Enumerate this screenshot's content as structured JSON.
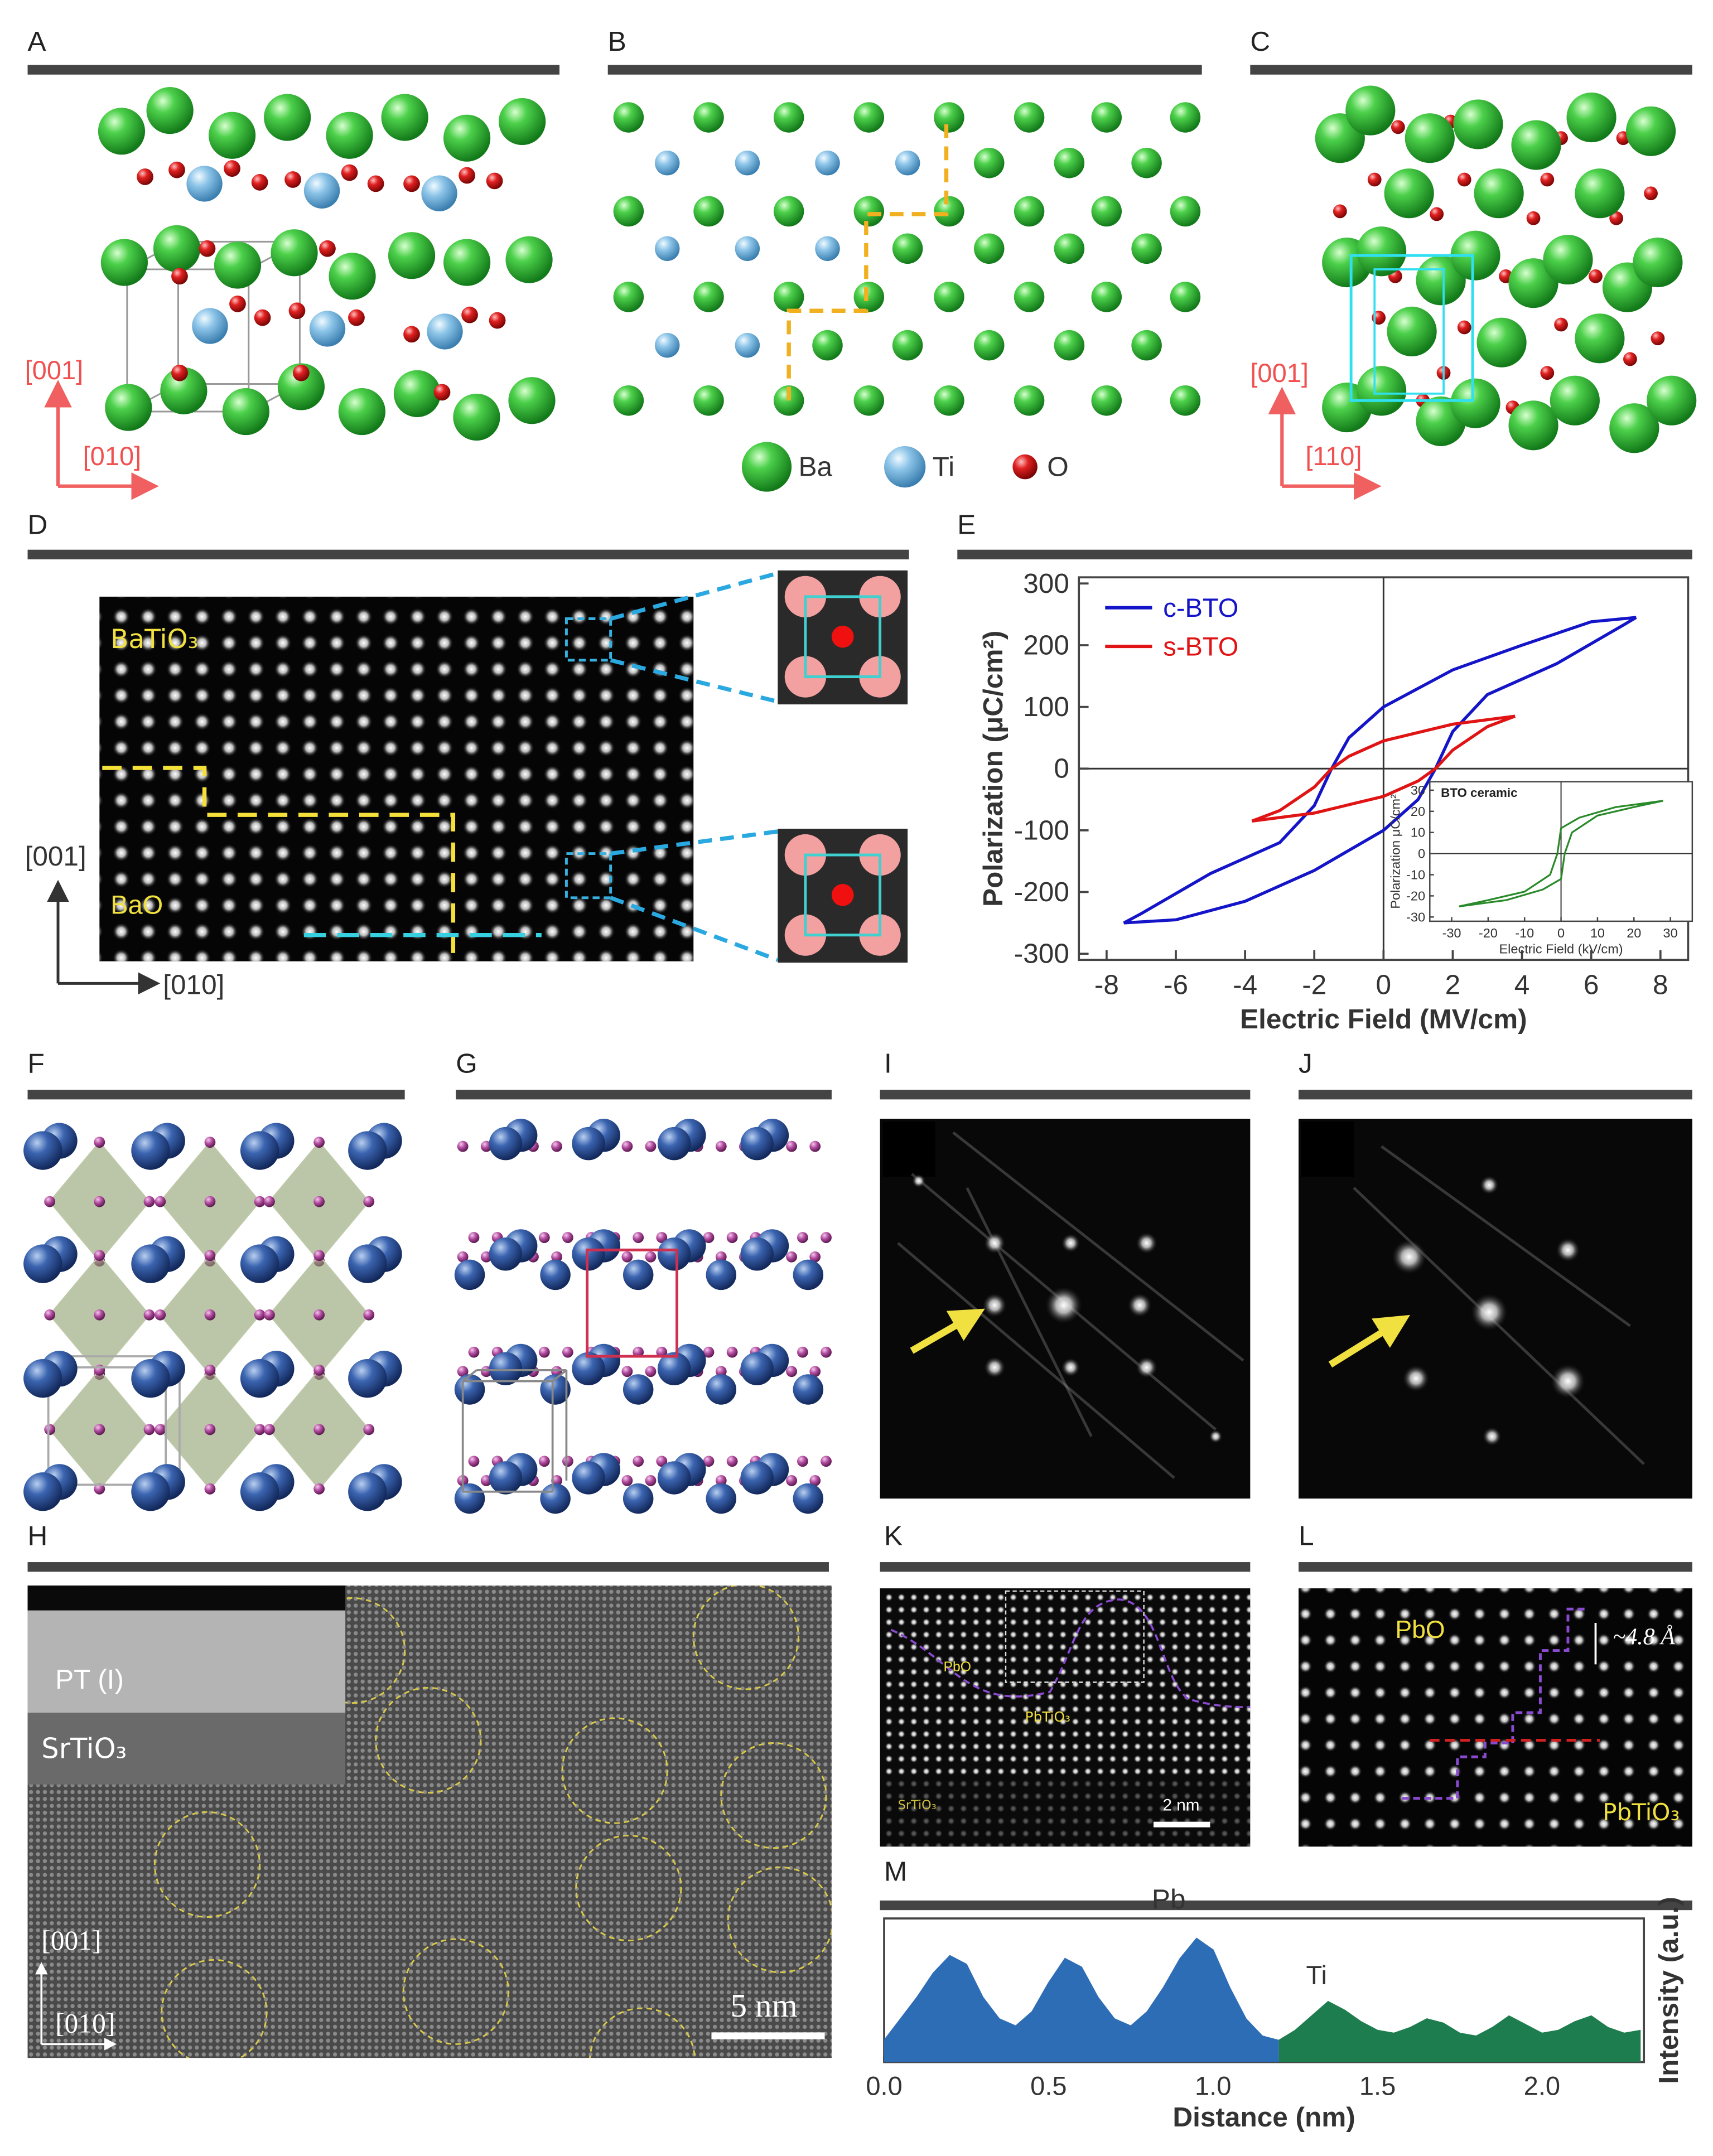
{
  "panels": {
    "A": {
      "label": "A",
      "axes": [
        "[001]",
        "[010]"
      ]
    },
    "B": {
      "label": "B",
      "legend": [
        "Ba",
        "Ti",
        "O"
      ]
    },
    "C": {
      "label": "C",
      "axes": [
        "[001]",
        "[110]"
      ]
    },
    "D": {
      "label": "D",
      "labels": [
        "BaTiO₃",
        "BaO"
      ],
      "axes": [
        "[001]",
        "[010]"
      ]
    },
    "E": {
      "label": "E"
    },
    "F": {
      "label": "F"
    },
    "G": {
      "label": "G"
    },
    "H": {
      "label": "H",
      "inset": [
        "PT (I)",
        "SrTiO₃"
      ],
      "axes": [
        "[001]",
        "[010]"
      ],
      "scale_bar": "5 nm"
    },
    "I": {
      "label": "I"
    },
    "J": {
      "label": "J"
    },
    "K": {
      "label": "K",
      "labels": [
        "PbO",
        "PbTiO₃",
        "SrTiO₃"
      ],
      "scale_bar": "2 nm"
    },
    "L": {
      "label": "L",
      "labels": [
        "PbO",
        "PbTiO₃"
      ],
      "spacing": "~4.8 Å"
    },
    "M": {
      "label": "M"
    }
  },
  "chart_data": [
    {
      "type": "line",
      "x_label": "Electric Field (MV/cm)",
      "y_label": "Polarization (μC/cm²)",
      "xlim": [
        -8.8,
        8.8
      ],
      "ylim": [
        -310,
        310
      ],
      "xticks": [
        -8,
        -6,
        -4,
        -2,
        0,
        2,
        4,
        6,
        8
      ],
      "yticks": [
        -300,
        -200,
        -100,
        0,
        100,
        200,
        300
      ],
      "zero_lines": true,
      "series": [
        {
          "name": "c-BTO",
          "color": "#1414c8",
          "x": [
            7.3,
            6,
            4,
            2,
            0,
            -1,
            -1.5,
            -2,
            -3,
            -5,
            -7,
            -7.5,
            -6,
            -4,
            -2,
            0,
            1,
            1.5,
            2,
            3,
            5,
            7,
            7.3
          ],
          "values": [
            245,
            238,
            200,
            160,
            100,
            50,
            0,
            -60,
            -120,
            -170,
            -235,
            -250,
            -245,
            -215,
            -165,
            -100,
            -50,
            0,
            60,
            120,
            170,
            235,
            245
          ]
        },
        {
          "name": "s-BTO",
          "color": "#e01414",
          "x": [
            3.8,
            2,
            0,
            -1,
            -1.5,
            -2,
            -3,
            -3.8,
            -2,
            0,
            1,
            1.5,
            2,
            3,
            3.8
          ],
          "values": [
            85,
            72,
            45,
            20,
            0,
            -30,
            -68,
            -85,
            -72,
            -45,
            -20,
            0,
            30,
            68,
            85
          ]
        }
      ]
    },
    {
      "type": "line",
      "title": "BTO ceramic",
      "x_label": "Electric Field (kV/cm)",
      "y_label": "Polarization μC/cm²",
      "xlim": [
        -36,
        36
      ],
      "ylim": [
        -32,
        34
      ],
      "xticks": [
        -30,
        -20,
        -10,
        0,
        10,
        20,
        30
      ],
      "yticks": [
        -30,
        -20,
        -10,
        0,
        10,
        20,
        30
      ],
      "zero_lines": true,
      "series": [
        {
          "color": "#2a8a2a",
          "x": [
            28,
            15,
            5,
            0,
            -1,
            -3,
            -10,
            -20,
            -28,
            -15,
            -5,
            0,
            1,
            3,
            10,
            20,
            28
          ],
          "values": [
            25,
            22,
            17,
            12,
            0,
            -10,
            -18,
            -22,
            -25,
            -22,
            -17,
            -12,
            0,
            10,
            18,
            22,
            25
          ]
        }
      ]
    },
    {
      "type": "area",
      "x_label": "Distance (nm)",
      "y_label": "Intensity (a.u.)",
      "xlim": [
        0,
        2.31
      ],
      "ylim": [
        0,
        1
      ],
      "xticks": [
        {
          "value": 0,
          "label": "0.0"
        },
        {
          "value": 0.5,
          "label": "0.5"
        },
        {
          "value": 1,
          "label": "1.0"
        },
        {
          "value": 1.5,
          "label": "1.5"
        },
        {
          "value": 2,
          "label": "2.0"
        }
      ],
      "series": [
        {
          "name": "Pb",
          "color": "#2d6db5",
          "x": [
            0,
            0.05,
            0.1,
            0.15,
            0.2,
            0.25,
            0.3,
            0.35,
            0.4,
            0.45,
            0.5,
            0.55,
            0.6,
            0.65,
            0.7,
            0.75,
            0.8,
            0.85,
            0.9,
            0.95,
            1,
            1.05,
            1.1,
            1.15,
            1.2
          ],
          "values": [
            0.15,
            0.3,
            0.45,
            0.62,
            0.74,
            0.68,
            0.45,
            0.3,
            0.25,
            0.35,
            0.55,
            0.72,
            0.66,
            0.45,
            0.3,
            0.25,
            0.35,
            0.52,
            0.72,
            0.86,
            0.78,
            0.52,
            0.3,
            0.18,
            0.15
          ]
        },
        {
          "name": "Ti",
          "color": "#1e7d4e",
          "x": [
            1.2,
            1.25,
            1.3,
            1.35,
            1.4,
            1.45,
            1.5,
            1.55,
            1.6,
            1.65,
            1.7,
            1.75,
            1.8,
            1.85,
            1.9,
            1.95,
            2,
            2.05,
            2.1,
            2.15,
            2.2,
            2.25,
            2.3
          ],
          "values": [
            0.15,
            0.22,
            0.32,
            0.42,
            0.36,
            0.28,
            0.22,
            0.2,
            0.24,
            0.3,
            0.27,
            0.2,
            0.18,
            0.24,
            0.32,
            0.26,
            0.2,
            0.22,
            0.28,
            0.32,
            0.24,
            0.2,
            0.22
          ]
        }
      ]
    }
  ]
}
